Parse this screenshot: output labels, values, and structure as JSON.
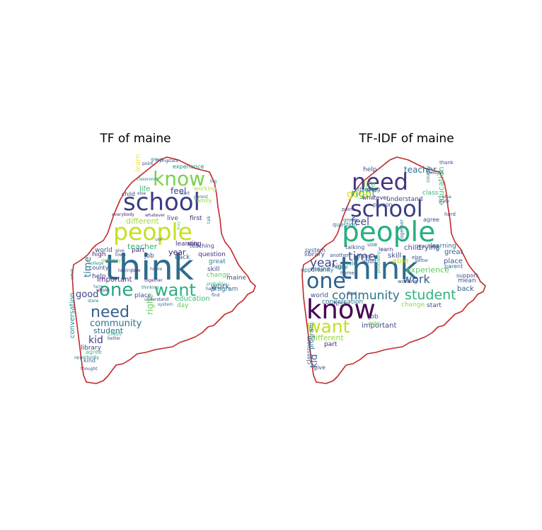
{
  "figure": {
    "panels": [
      {
        "title": "TF of maine",
        "outline_color": "#c0292b",
        "words": [
          {
            "text": "think",
            "color": "#2f6b8e"
          },
          {
            "text": "people",
            "color": "#c7e020"
          },
          {
            "text": "school",
            "color": "#3b3c84"
          },
          {
            "text": "know",
            "color": "#7ad151"
          },
          {
            "text": "one",
            "color": "#24a684"
          },
          {
            "text": "want",
            "color": "#2ab07f"
          },
          {
            "text": "need",
            "color": "#33608d"
          },
          {
            "text": "community",
            "color": "#2c728e"
          },
          {
            "text": "student",
            "color": "#31688e"
          },
          {
            "text": "education",
            "color": "#3aba76"
          },
          {
            "text": "kid",
            "color": "#433e85"
          },
          {
            "text": "important",
            "color": "#482878"
          },
          {
            "text": "work",
            "color": "#31688e"
          },
          {
            "text": "year",
            "color": "#482475"
          },
          {
            "text": "feel",
            "color": "#3e4989"
          },
          {
            "text": "different",
            "color": "#a0da39"
          },
          {
            "text": "teacher",
            "color": "#2db27d"
          },
          {
            "text": "able",
            "color": "#482677"
          },
          {
            "text": "learning",
            "color": "#46327e"
          },
          {
            "text": "life",
            "color": "#35b779"
          },
          {
            "text": "right",
            "color": "#6ccd5a"
          },
          {
            "text": "time",
            "color": "#2a788e"
          },
          {
            "text": "good",
            "color": "#3f4788"
          },
          {
            "text": "conversation",
            "color": "#21918c"
          },
          {
            "text": "library",
            "color": "#414487"
          },
          {
            "text": "agree",
            "color": "#46c06f"
          },
          {
            "text": "kind",
            "color": "#31688e"
          },
          {
            "text": "help",
            "color": "#414487"
          },
          {
            "text": "high",
            "color": "#482475"
          },
          {
            "text": "world",
            "color": "#3b528b"
          },
          {
            "text": "part",
            "color": "#472c7a"
          },
          {
            "text": "job",
            "color": "#3e4c8a"
          },
          {
            "text": "back",
            "color": "#365c8d"
          },
          {
            "text": "question",
            "color": "#46337f"
          },
          {
            "text": "great",
            "color": "#26828e"
          },
          {
            "text": "skill",
            "color": "#3e4a89"
          },
          {
            "text": "change",
            "color": "#5ec962"
          },
          {
            "text": "program",
            "color": "#2c728e"
          },
          {
            "text": "maine",
            "color": "#3b528b"
          },
          {
            "text": "day",
            "color": "#5ec962"
          },
          {
            "text": "place",
            "color": "#3b528b"
          },
          {
            "text": "live",
            "color": "#404688"
          },
          {
            "text": "first",
            "color": "#482878"
          },
          {
            "text": "experience",
            "color": "#21918c"
          },
          {
            "text": "learn",
            "color": "#fde725"
          },
          {
            "text": "child",
            "color": "#414487"
          },
          {
            "text": "county",
            "color": "#404688"
          },
          {
            "text": "class",
            "color": "#2ab07f"
          },
          {
            "text": "working",
            "color": "#b5de2b"
          },
          {
            "text": "family",
            "color": "#95d840"
          },
          {
            "text": "teaching",
            "color": "#3e4c8a"
          },
          {
            "text": "opportunity",
            "color": "#2c728e"
          },
          {
            "text": "thought",
            "color": "#3b528b"
          },
          {
            "text": "college",
            "color": "#21918c"
          },
          {
            "text": "parent",
            "color": "#2c728e"
          },
          {
            "text": "start",
            "color": "#3b528b"
          },
          {
            "text": "whatever",
            "color": "#482878"
          },
          {
            "text": "thinking",
            "color": "#26828e"
          },
          {
            "text": "together",
            "color": "#472d7b"
          },
          {
            "text": "understand",
            "color": "#3e4989"
          },
          {
            "text": "system",
            "color": "#2a788e"
          },
          {
            "text": "probably",
            "color": "#2ab07f"
          },
          {
            "text": "find",
            "color": "#39568c"
          },
          {
            "text": "hard",
            "color": "#3e4c8a"
          },
          {
            "text": "talk",
            "color": "#26828e"
          },
          {
            "text": "definitely",
            "color": "#6ccd5a"
          },
          {
            "text": "whole",
            "color": "#482475"
          },
          {
            "text": "store",
            "color": "#2a788e"
          },
          {
            "text": "better",
            "color": "#3b528b"
          },
          {
            "text": "classroom",
            "color": "#21918c"
          },
          {
            "text": "give",
            "color": "#3e4989"
          },
          {
            "text": "group",
            "color": "#2c728e"
          },
          {
            "text": "state",
            "color": "#3b528b"
          },
          {
            "text": "big",
            "color": "#21918c"
          },
          {
            "text": "else",
            "color": "#3b528b"
          },
          {
            "text": "talking",
            "color": "#404688"
          },
          {
            "text": "home",
            "color": "#3b528b"
          },
          {
            "text": "farm",
            "color": "#21918c"
          },
          {
            "text": "love",
            "color": "#482878"
          },
          {
            "text": "point",
            "color": "#414487"
          },
          {
            "text": "town",
            "color": "#3b528b"
          },
          {
            "text": "way",
            "color": "#6ccd5a"
          },
          {
            "text": "trying",
            "color": "#3b528b"
          },
          {
            "text": "use",
            "color": "#31688e"
          },
          {
            "text": "adult",
            "color": "#21918c"
          },
          {
            "text": "everybody",
            "color": "#482878"
          },
          {
            "text": "person",
            "color": "#3b528b"
          }
        ]
      },
      {
        "title": "TF-IDF of maine",
        "outline_color": "#c0292b",
        "words": [
          {
            "text": "think",
            "color": "#2f6b8e"
          },
          {
            "text": "people",
            "color": "#29af7f"
          },
          {
            "text": "school",
            "color": "#3b3c84"
          },
          {
            "text": "need",
            "color": "#46337f"
          },
          {
            "text": "know",
            "color": "#440154"
          },
          {
            "text": "one",
            "color": "#2a5f8d"
          },
          {
            "text": "want",
            "color": "#c2df23"
          },
          {
            "text": "community",
            "color": "#2c738e"
          },
          {
            "text": "student",
            "color": "#2eb37c"
          },
          {
            "text": "work",
            "color": "#365c8d"
          },
          {
            "text": "time",
            "color": "#3b528b"
          },
          {
            "text": "year",
            "color": "#3e4989"
          },
          {
            "text": "feel",
            "color": "#404688"
          },
          {
            "text": "right",
            "color": "#2ab07f"
          },
          {
            "text": "good",
            "color": "#d2e21b"
          },
          {
            "text": "teacher",
            "color": "#2c728e"
          },
          {
            "text": "education",
            "color": "#46c06f"
          },
          {
            "text": "life",
            "color": "#65cb5e"
          },
          {
            "text": "thinking",
            "color": "#2c728e"
          },
          {
            "text": "help",
            "color": "#3b528b"
          },
          {
            "text": "learning",
            "color": "#2c738e"
          },
          {
            "text": "important",
            "color": "#3e4c8a"
          },
          {
            "text": "kid",
            "color": "#31688e"
          },
          {
            "text": "different",
            "color": "#95d840"
          },
          {
            "text": "part",
            "color": "#482475"
          },
          {
            "text": "world",
            "color": "#39568c"
          },
          {
            "text": "first",
            "color": "#3b528b"
          },
          {
            "text": "conversation",
            "color": "#2c728e"
          },
          {
            "text": "library",
            "color": "#3b528b"
          },
          {
            "text": "maine",
            "color": "#3b528b"
          },
          {
            "text": "learn",
            "color": "#482878"
          },
          {
            "text": "skill",
            "color": "#3e4a89"
          },
          {
            "text": "able",
            "color": "#c2df23"
          },
          {
            "text": "high",
            "color": "#3b528b"
          },
          {
            "text": "great",
            "color": "#365c8d"
          },
          {
            "text": "place",
            "color": "#3b528b"
          },
          {
            "text": "back",
            "color": "#365c8d"
          },
          {
            "text": "mean",
            "color": "#3b528b"
          },
          {
            "text": "support",
            "color": "#3e4c8a"
          },
          {
            "text": "change",
            "color": "#95d840"
          },
          {
            "text": "start",
            "color": "#3b528b"
          },
          {
            "text": "job",
            "color": "#3b528b"
          },
          {
            "text": "program",
            "color": "#2c728e"
          },
          {
            "text": "class",
            "color": "#35b779"
          },
          {
            "text": "understand",
            "color": "#414487"
          },
          {
            "text": "whatever",
            "color": "#482878"
          },
          {
            "text": "child",
            "color": "#3e4989"
          },
          {
            "text": "trying",
            "color": "#3b528b"
          },
          {
            "text": "experience",
            "color": "#5ec962"
          },
          {
            "text": "county",
            "color": "#26828e"
          },
          {
            "text": "question",
            "color": "#2c728e"
          },
          {
            "text": "system",
            "color": "#3b528b"
          },
          {
            "text": "talking",
            "color": "#3b528b"
          },
          {
            "text": "farm",
            "color": "#3b528b"
          },
          {
            "text": "adult",
            "color": "#3b528b"
          },
          {
            "text": "parent",
            "color": "#2c728e"
          },
          {
            "text": "opportunity",
            "color": "#2c728e"
          },
          {
            "text": "classroom",
            "color": "#3b528b"
          },
          {
            "text": "give",
            "color": "#3b528b"
          },
          {
            "text": "way",
            "color": "#6ccd5a"
          },
          {
            "text": "person",
            "color": "#3b528b"
          },
          {
            "text": "thank",
            "color": "#3b528b"
          },
          {
            "text": "agree",
            "color": "#3b528b"
          },
          {
            "text": "together",
            "color": "#2c728e"
          },
          {
            "text": "teaching",
            "color": "#3e4c8a"
          },
          {
            "text": "talk",
            "color": "#26828e"
          },
          {
            "text": "use",
            "color": "#31688e"
          },
          {
            "text": "day",
            "color": "#3b528b"
          },
          {
            "text": "store",
            "color": "#2a788e"
          },
          {
            "text": "home",
            "color": "#3b528b"
          },
          {
            "text": "hard",
            "color": "#3e4c8a"
          },
          {
            "text": "working",
            "color": "#3b528b"
          },
          {
            "text": "probably",
            "color": "#2ab07f"
          },
          {
            "text": "else",
            "color": "#3b528b"
          },
          {
            "text": "another",
            "color": "#3b528b"
          },
          {
            "text": "find",
            "color": "#39568c"
          },
          {
            "text": "group",
            "color": "#2c728e"
          },
          {
            "text": "idea",
            "color": "#3b528b"
          },
          {
            "text": "state",
            "color": "#3b528b"
          },
          {
            "text": "thought",
            "color": "#3b528b"
          },
          {
            "text": "point",
            "color": "#414487"
          },
          {
            "text": "better",
            "color": "#3b528b"
          }
        ]
      }
    ]
  }
}
